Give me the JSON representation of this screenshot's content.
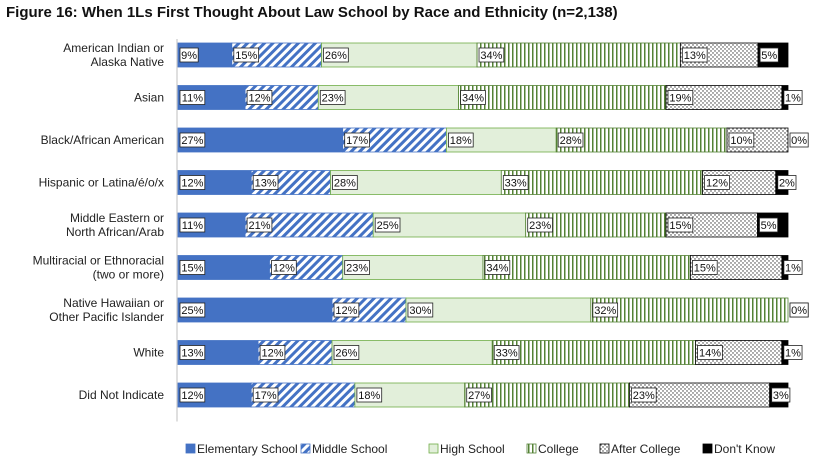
{
  "chart_data": {
    "type": "bar",
    "stacked": "horizontal",
    "title": "Figure 16: When 1Ls First Thought About Law School by Race and Ethnicity (n=2,138)",
    "categories": [
      "American Indian or\nAlaska Native",
      "Asian",
      "Black/African American",
      "Hispanic or Latina/é/o/x",
      "Middle Eastern or\nNorth African/Arab",
      "Multiracial or Ethnoracial\n(two or more)",
      "Native Hawaiian or\nOther Pacific Islander",
      "White",
      "Did Not Indicate"
    ],
    "series": [
      {
        "name": "Elementary School",
        "values": [
          9,
          11,
          27,
          12,
          11,
          15,
          25,
          13,
          12
        ]
      },
      {
        "name": "Middle School",
        "values": [
          15,
          12,
          17,
          13,
          21,
          12,
          12,
          12,
          17
        ]
      },
      {
        "name": "High School",
        "values": [
          26,
          23,
          18,
          28,
          25,
          23,
          30,
          26,
          18
        ]
      },
      {
        "name": "College",
        "values": [
          34,
          34,
          28,
          33,
          23,
          34,
          32,
          33,
          27
        ]
      },
      {
        "name": "After College",
        "values": [
          13,
          19,
          10,
          12,
          15,
          15,
          0,
          14,
          23
        ]
      },
      {
        "name": "Don't Know",
        "values": [
          5,
          1,
          0,
          2,
          5,
          1,
          0,
          1,
          3
        ]
      }
    ],
    "data_labels": [
      [
        "9%",
        "15%",
        "26%",
        "34%",
        "13%",
        "5%"
      ],
      [
        "11%",
        "12%",
        "23%",
        "34%",
        "19%",
        "1%"
      ],
      [
        "27%",
        "17%",
        "18%",
        "28%",
        "10%",
        "0%"
      ],
      [
        "12%",
        "13%",
        "28%",
        "33%",
        "12%",
        "2%"
      ],
      [
        "11%",
        "21%",
        "25%",
        "23%",
        "15%",
        "5%"
      ],
      [
        "15%",
        "12%",
        "23%",
        "34%",
        "15%",
        "1%"
      ],
      [
        "25%",
        "12%",
        "30%",
        "32%",
        "0%",
        "0%"
      ],
      [
        "13%",
        "12%",
        "26%",
        "33%",
        "14%",
        "1%"
      ],
      [
        "12%",
        "17%",
        "18%",
        "27%",
        "23%",
        "3%"
      ]
    ],
    "legend_position": "bottom",
    "grid": false,
    "colors": {
      "elementary": "#4472c4",
      "middle": "#4472c4",
      "high_fill": "#e2efda",
      "high_stroke": "#70ad47",
      "college": "#548235",
      "after": "#000000",
      "dont_know": "#000000"
    }
  }
}
